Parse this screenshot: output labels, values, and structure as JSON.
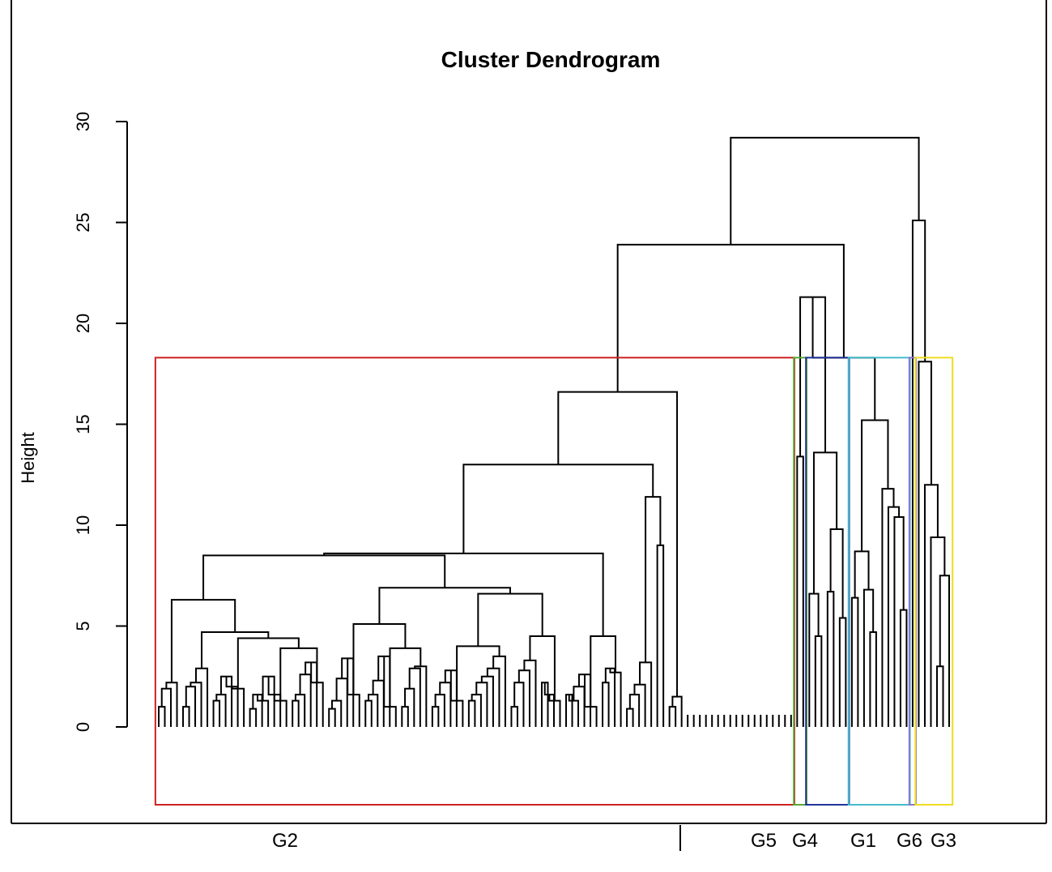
{
  "chart_data": {
    "type": "dendrogram",
    "title": "Cluster Dendrogram",
    "ylabel": "Height",
    "ylim": [
      0,
      30
    ],
    "yticks": [
      0,
      5,
      10,
      15,
      20,
      25,
      30
    ],
    "cut_height": 18.3,
    "leaf_count": 131,
    "merge_heights_top": [
      29.2,
      25.1,
      23.9,
      21.3,
      18.3,
      18.1,
      16.6,
      15.2,
      13.6,
      13.4,
      13.0,
      12.0,
      11.8,
      11.4,
      10.9,
      10.4,
      9.8,
      9.4,
      9.0,
      8.7,
      8.5,
      7.5,
      6.9,
      6.8,
      6.6,
      6.4,
      6.3
    ],
    "groups": [
      {
        "name": "G2",
        "color": "#cc2222",
        "first_leaf": 0,
        "last_leaf": 104
      },
      {
        "name": "G5",
        "color": "#55aa33",
        "first_leaf": 105,
        "last_leaf": 106
      },
      {
        "name": "G4",
        "color": "#223399",
        "first_leaf": 107,
        "last_leaf": 113
      },
      {
        "name": "G1",
        "color": "#44bbcc",
        "first_leaf": 114,
        "last_leaf": 123
      },
      {
        "name": "G6",
        "color": "#8877cc",
        "first_leaf": 124,
        "last_leaf": 124
      },
      {
        "name": "G3",
        "color": "#eedd22",
        "first_leaf": 125,
        "last_leaf": 130
      }
    ],
    "group_labels": [
      "G2",
      "G5",
      "G4",
      "G1",
      "G6",
      "G3"
    ]
  }
}
